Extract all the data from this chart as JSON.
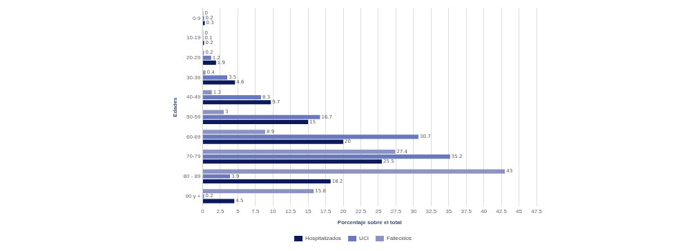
{
  "chart_data": {
    "type": "bar",
    "orientation": "horizontal",
    "xlabel": "Porcentaje sobre el total",
    "ylabel": "Edades",
    "categories": [
      "0-9",
      "10-19",
      "20-29",
      "30-39",
      "40-49",
      "50-59",
      "60-69",
      "70-79",
      "80 - 89",
      "90 y +"
    ],
    "series": [
      {
        "name": "Hospitalizados",
        "color": "#0c1a5b",
        "values": [
          0.3,
          0.2,
          1.9,
          4.6,
          9.7,
          15,
          20,
          25.5,
          18.2,
          4.5
        ]
      },
      {
        "name": "UCI",
        "color": "#6a79bd",
        "values": [
          0.2,
          0.1,
          1.2,
          3.5,
          8.3,
          16.7,
          30.7,
          35.2,
          3.9,
          0.2
        ]
      },
      {
        "name": "Fallecidos",
        "color": "#8d93c1",
        "values": [
          0,
          0,
          0.2,
          0.4,
          1.3,
          3,
          8.9,
          27.4,
          43,
          15.8
        ]
      }
    ],
    "xlim": [
      0,
      47.5
    ],
    "xticks": [
      0,
      2.5,
      5,
      7.5,
      10,
      12.5,
      15,
      17.5,
      20,
      22.5,
      25,
      27.5,
      30,
      32.5,
      35,
      37.5,
      40,
      42.5,
      45,
      47.5
    ],
    "grid": "x",
    "legend": "bottom",
    "data_labels": true
  }
}
